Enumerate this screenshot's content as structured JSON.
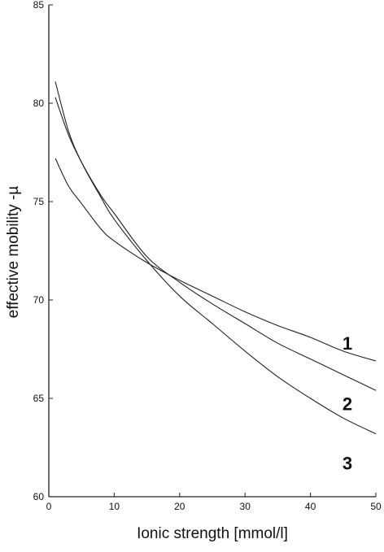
{
  "chart_data": {
    "type": "line",
    "title": "",
    "xlabel": "Ionic strength [mmol/l]",
    "ylabel": "effective mobility -µ",
    "xlim": [
      0,
      50
    ],
    "ylim": [
      60,
      85
    ],
    "xticks": [
      "0",
      "10",
      "20",
      "30",
      "40",
      "50"
    ],
    "yticks": [
      "60",
      "65",
      "70",
      "75",
      "80",
      "85"
    ],
    "grid": false,
    "legend": "none",
    "line_color": "#222222",
    "series": [
      {
        "label": "1",
        "x": [
          1,
          3,
          5,
          8,
          10,
          15,
          20,
          25,
          30,
          35,
          40,
          45,
          50
        ],
        "y": [
          77.2,
          75.8,
          74.9,
          73.6,
          73.0,
          71.9,
          71.0,
          70.2,
          69.4,
          68.7,
          68.1,
          67.4,
          66.9
        ]
      },
      {
        "label": "2",
        "x": [
          1,
          3,
          5,
          8,
          10,
          15,
          20,
          25,
          30,
          35,
          40,
          45,
          50
        ],
        "y": [
          80.3,
          78.4,
          77.0,
          75.3,
          74.4,
          72.2,
          70.9,
          69.8,
          68.8,
          67.8,
          67.0,
          66.2,
          65.4
        ]
      },
      {
        "label": "3",
        "x": [
          1,
          3,
          5,
          8,
          10,
          15,
          20,
          25,
          30,
          35,
          40,
          45,
          50
        ],
        "y": [
          81.1,
          78.6,
          77.0,
          75.2,
          74.1,
          72.0,
          70.2,
          68.8,
          67.4,
          66.1,
          65.0,
          64.0,
          63.2
        ]
      }
    ]
  }
}
